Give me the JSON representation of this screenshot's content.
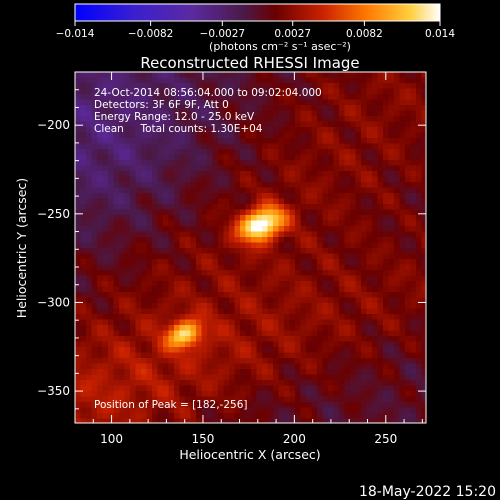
{
  "chart_data": {
    "type": "heatmap",
    "title": "Reconstructed RHESSI Image",
    "xlabel": "Heliocentric X (arcsec)",
    "ylabel": "Heliocentric Y (arcsec)",
    "xlim": [
      80,
      272
    ],
    "ylim": [
      -368,
      -170
    ],
    "xticks": [
      100,
      150,
      200,
      250
    ],
    "yticks": [
      -200,
      -250,
      -300,
      -350
    ],
    "colorbar": {
      "min": -0.014,
      "max": 0.014,
      "tick_labels": [
        "−0.014",
        "−0.0082",
        "−0.0027",
        "0.0027",
        "0.0082",
        "0.014"
      ],
      "tick_values": [
        -0.014,
        -0.0082,
        -0.0027,
        0.0027,
        0.0082,
        0.014
      ],
      "units_label": "(photons cm⁻² s⁻¹ asec⁻²)",
      "colors": [
        "#0000ff",
        "#3a1fd0",
        "#5b2aa0",
        "#5a1a5a",
        "#8a0000",
        "#cc2200",
        "#ff7a00",
        "#ffd040",
        "#ffffff"
      ]
    },
    "annotations": {
      "time_range": "24-Oct-2014 08:56:04.000 to 09:02:04.000",
      "detectors": "Detectors: 3F 6F 9F, Att 0",
      "energy": "Energy Range: 12.0 - 25.0 keV",
      "clean": "Clean     Total counts: 1.30E+04",
      "peak": "Position of Peak = [182,-256]"
    },
    "sources": [
      {
        "x": 182,
        "y": -256,
        "peak": 0.014,
        "sx": 9,
        "sy": 6
      },
      {
        "x": 140,
        "y": -318,
        "peak": 0.0095,
        "sx": 7,
        "sy": 5
      }
    ]
  },
  "footer": {
    "date": "18-May-2022 15:20"
  }
}
